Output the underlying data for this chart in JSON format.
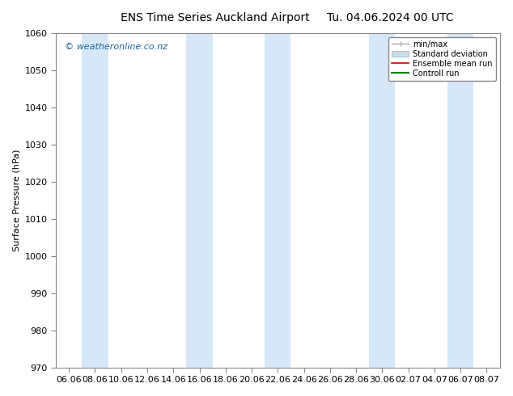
{
  "title_left": "ENS Time Series Auckland Airport",
  "title_right": "Tu. 04.06.2024 00 UTC",
  "ylabel": "Surface Pressure (hPa)",
  "watermark": "© weatheronline.co.nz",
  "ylim": [
    970,
    1060
  ],
  "yticks": [
    970,
    980,
    990,
    1000,
    1010,
    1020,
    1030,
    1040,
    1050,
    1060
  ],
  "x_labels": [
    "06.06",
    "08.06",
    "10.06",
    "12.06",
    "14.06",
    "16.06",
    "18.06",
    "20.06",
    "22.06",
    "24.06",
    "26.06",
    "28.06",
    "30.06",
    "02.07",
    "04.07",
    "06.07",
    "08.07"
  ],
  "num_points": 17,
  "band_color": "#d6e8f7",
  "background_color": "#ffffff",
  "legend_minmax_color": "#aaaaaa",
  "legend_stddev_color": "#c8dcea",
  "legend_mean_color": "#cc0000",
  "legend_control_color": "#008000",
  "title_fontsize": 10,
  "axis_fontsize": 8,
  "tick_fontsize": 8,
  "watermark_color": "#1a6699",
  "spine_color": "#888888"
}
